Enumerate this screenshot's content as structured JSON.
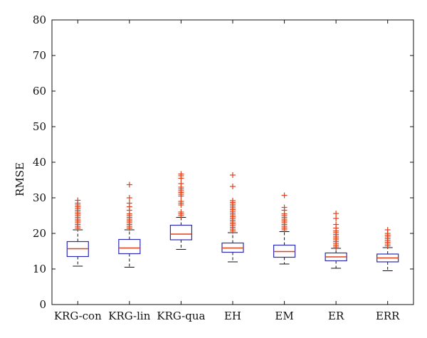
{
  "chart_data": {
    "type": "box",
    "title": "",
    "xlabel": "",
    "ylabel": "RMSE",
    "ylim": [
      0,
      80
    ],
    "yticks": [
      0,
      10,
      20,
      30,
      40,
      50,
      60,
      70,
      80
    ],
    "categories": [
      "KRG-con",
      "KRG-lin",
      "KRG-qua",
      "EH",
      "EM",
      "ER",
      "ERR"
    ],
    "grid": false,
    "colors": {
      "box": "#2b2bb3",
      "median": "#e0401a",
      "whisker": "#111111",
      "outlier": "#e0401a",
      "axis": "#111111"
    },
    "boxes": [
      {
        "name": "KRG-con",
        "whislo": 10.8,
        "q1": 13.5,
        "med": 15.7,
        "q3": 17.7,
        "whishi": 21.0,
        "fliers": [
          21.5,
          22.0,
          22.5,
          23.0,
          23.5,
          24.0,
          24.5,
          25.0,
          25.5,
          26.0,
          26.5,
          27.0,
          27.5,
          28.0,
          28.5,
          29.3
        ]
      },
      {
        "name": "KRG-lin",
        "whislo": 10.5,
        "q1": 14.3,
        "med": 15.9,
        "q3": 18.3,
        "whishi": 21.0,
        "fliers": [
          21.5,
          22.0,
          22.5,
          23.0,
          23.5,
          24.0,
          24.5,
          25.0,
          25.5,
          26.5,
          27.5,
          28.5,
          30.0,
          33.7
        ]
      },
      {
        "name": "KRG-qua",
        "whislo": 15.5,
        "q1": 18.2,
        "med": 19.8,
        "q3": 22.3,
        "whishi": 24.5,
        "fliers": [
          25.0,
          25.5,
          26.0,
          28.0,
          28.5,
          29.0,
          30.5,
          31.0,
          31.5,
          32.0,
          32.5,
          33.0,
          34.0,
          35.5,
          36.2,
          36.7
        ]
      },
      {
        "name": "EH",
        "whislo": 12.0,
        "q1": 14.7,
        "med": 15.9,
        "q3": 17.3,
        "whishi": 20.2,
        "fliers": [
          20.7,
          21.2,
          21.7,
          22.2,
          22.7,
          23.2,
          23.7,
          24.2,
          24.7,
          25.2,
          25.7,
          26.2,
          26.7,
          27.2,
          27.7,
          28.2,
          28.7,
          29.2,
          33.2,
          36.4
        ]
      },
      {
        "name": "EM",
        "whislo": 11.4,
        "q1": 13.3,
        "med": 14.9,
        "q3": 16.7,
        "whishi": 20.5,
        "fliers": [
          21.0,
          21.5,
          22.0,
          22.5,
          23.0,
          23.5,
          24.0,
          24.5,
          25.0,
          25.5,
          26.5,
          27.3,
          30.7
        ]
      },
      {
        "name": "ER",
        "whislo": 10.2,
        "q1": 12.3,
        "med": 13.4,
        "q3": 14.5,
        "whishi": 15.8,
        "fliers": [
          16.2,
          16.7,
          17.2,
          17.7,
          18.2,
          18.7,
          19.2,
          19.7,
          20.2,
          20.7,
          21.5,
          22.5,
          24.2,
          25.6
        ]
      },
      {
        "name": "ERR",
        "whislo": 9.5,
        "q1": 12.0,
        "med": 13.1,
        "q3": 14.2,
        "whishi": 16.0,
        "fliers": [
          16.5,
          17.0,
          17.5,
          18.0,
          18.5,
          19.0,
          19.5,
          20.0,
          21.0
        ]
      }
    ]
  }
}
